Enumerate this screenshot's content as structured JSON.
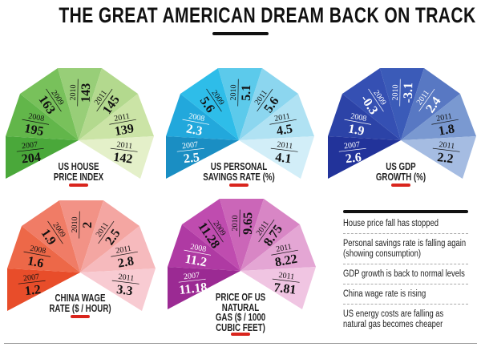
{
  "title": "THE GREAT AMERICAN DREAM BACK ON TRACK",
  "accent_color": "#d9251d",
  "chart_data": [
    {
      "type": "fan",
      "title_lines": [
        "US HOUSE",
        "PRICE INDEX"
      ],
      "years": [
        "2007",
        "2008",
        "2009",
        "2010",
        "2011",
        "2011",
        "2011"
      ],
      "values": [
        "204",
        "195",
        "163",
        "143",
        "145",
        "139",
        "142"
      ],
      "colors": [
        "#4aa83a",
        "#62b64a",
        "#78c15b",
        "#98ce78",
        "#b3d98e",
        "#cbe4a6",
        "#e4f0c9"
      ],
      "text_colors": [
        "#111",
        "#111",
        "#111",
        "#111",
        "#111",
        "#111",
        "#111"
      ]
    },
    {
      "type": "fan",
      "title_lines": [
        "US PERSONAL",
        "SAVINGS RATE (%)"
      ],
      "years": [
        "2007",
        "2008",
        "2009",
        "2010",
        "2011",
        "2011",
        "2011"
      ],
      "values": [
        "2.5",
        "2.3",
        "5.6",
        "5.1",
        "5.6",
        "4.5",
        "4.1"
      ],
      "colors": [
        "#1a8ec3",
        "#22a8dc",
        "#2ebde9",
        "#5ccaeb",
        "#8cd6ef",
        "#b0e2f3",
        "#d2eef8"
      ],
      "text_colors": [
        "#fff",
        "#fff",
        "#111",
        "#111",
        "#111",
        "#111",
        "#111"
      ]
    },
    {
      "type": "fan",
      "title_lines": [
        "US GDP",
        "GROWTH (%)"
      ],
      "years": [
        "2007",
        "2008",
        "2009",
        "2010",
        "2011",
        "2011",
        "2011"
      ],
      "values": [
        "2.6",
        "1.9",
        "-0.3",
        "-3.1",
        "2.4",
        "1.8",
        "2.2"
      ],
      "colors": [
        "#22339a",
        "#2c43a7",
        "#3550b3",
        "#3b5bb8",
        "#5878c3",
        "#7a99d1",
        "#a5bce2"
      ],
      "text_colors": [
        "#fff",
        "#fff",
        "#fff",
        "#fff",
        "#fff",
        "#111",
        "#111"
      ]
    },
    {
      "type": "fan",
      "title_lines": [
        "CHINA WAGE",
        "RATE ($ / HOUR)"
      ],
      "years": [
        "2007",
        "2008",
        "2009",
        "2010",
        "2011",
        "2011",
        "2011"
      ],
      "values": [
        "1.2",
        "1.6",
        "1.9",
        "2",
        "2.5",
        "2.8",
        "3.3"
      ],
      "colors": [
        "#e84d2a",
        "#ed6848",
        "#f07c66",
        "#f29286",
        "#f4a6a2",
        "#f6babd",
        "#f8cbd2"
      ],
      "text_colors": [
        "#111",
        "#111",
        "#111",
        "#111",
        "#111",
        "#111",
        "#111"
      ]
    },
    {
      "type": "fan",
      "title_lines": [
        "PRICE OF US",
        "NATURAL",
        "GAS ($ / 1000",
        "CUBIC FEET)"
      ],
      "years": [
        "2007",
        "2008",
        "2009",
        "2010",
        "2011",
        "2011",
        "2011"
      ],
      "values": [
        "11.18",
        "11.2",
        "11.28",
        "9.65",
        "8.75",
        "8.22",
        "7.81"
      ],
      "colors": [
        "#9b2a93",
        "#af3aa3",
        "#bf4caf",
        "#cb66b8",
        "#d886c5",
        "#e4a6d4",
        "#f0c5e2"
      ],
      "text_colors": [
        "#fff",
        "#fff",
        "#111",
        "#111",
        "#111",
        "#111",
        "#111"
      ]
    }
  ],
  "notes": [
    "House price fall has stopped",
    "Personal savings rate is falling again\n(showing consumption)",
    "GDP growth is back to normal levels",
    "China wage rate is rising",
    "US energy costs are falling as\nnatural gas becomes cheaper"
  ]
}
